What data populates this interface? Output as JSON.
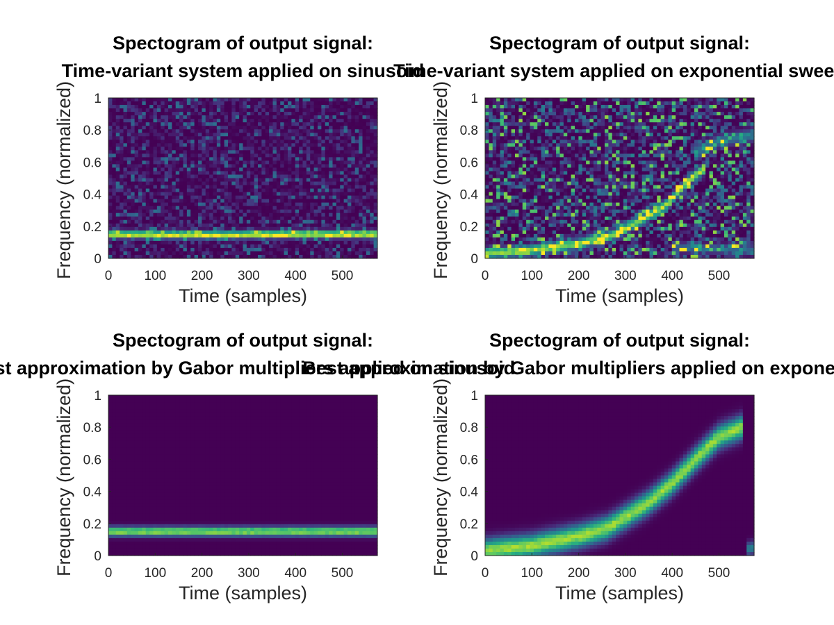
{
  "chart_data": [
    {
      "type": "heatmap",
      "title": "Spectogram of output signal:",
      "subtitle": "Time-variant system applied on sinusoid",
      "xlabel": "Time (samples)",
      "ylabel": "Frequency (normalized)",
      "xlim": [
        0,
        575
      ],
      "ylim": [
        0,
        1
      ],
      "xticks": [
        "0",
        "100",
        "200",
        "300",
        "400",
        "500"
      ],
      "yticks": [
        "0",
        "0.2",
        "0.4",
        "0.6",
        "0.8",
        "1"
      ],
      "colormap": "viridis",
      "ridges": [
        {
          "points": [
            [
              0,
              0.15
            ],
            [
              200,
              0.145
            ],
            [
              400,
              0.15
            ],
            [
              575,
              0.15
            ]
          ],
          "peak": 0.98,
          "width": 0.022
        }
      ],
      "background": "noisy",
      "noise_level": 0.17
    },
    {
      "type": "heatmap",
      "title": "Spectogram of output signal:",
      "subtitle": "Time-variant system applied on exponential sweep",
      "xlabel": "Time (samples)",
      "ylabel": "Frequency (normalized)",
      "xlim": [
        0,
        575
      ],
      "ylim": [
        0,
        1
      ],
      "xticks": [
        "0",
        "100",
        "200",
        "300",
        "400",
        "500"
      ],
      "yticks": [
        "0",
        "0.2",
        "0.4",
        "0.6",
        "0.8",
        "1"
      ],
      "colormap": "viridis",
      "ridges": [
        {
          "points": [
            [
              0,
              0.03
            ],
            [
              100,
              0.05
            ],
            [
              200,
              0.09
            ],
            [
              270,
              0.14
            ],
            [
              330,
              0.23
            ],
            [
              390,
              0.34
            ],
            [
              440,
              0.5
            ],
            [
              470,
              0.56
            ]
          ],
          "peak": 0.85,
          "width": 0.03
        },
        {
          "points": [
            [
              450,
              0.66
            ],
            [
              500,
              0.73
            ],
            [
              575,
              0.77
            ]
          ],
          "peak": 0.4,
          "width": 0.04
        },
        {
          "points": [
            [
              400,
              0.07
            ],
            [
              575,
              0.05
            ]
          ],
          "peak": 0.35,
          "width": 0.03
        }
      ],
      "background": "noisy",
      "noise_level": 0.38
    },
    {
      "type": "heatmap",
      "title": "Spectogram of output signal:",
      "subtitle": "Best approximation by Gabor multipliers applied on sinusoid",
      "xlabel": "Time (samples)",
      "ylabel": "Frequency (normalized)",
      "xlim": [
        0,
        575
      ],
      "ylim": [
        0,
        1
      ],
      "xticks": [
        "0",
        "100",
        "200",
        "300",
        "400",
        "500"
      ],
      "yticks": [
        "0",
        "0.2",
        "0.4",
        "0.6",
        "0.8",
        "1"
      ],
      "colormap": "viridis",
      "ridges": [
        {
          "points": [
            [
              0,
              0.15
            ],
            [
              575,
              0.15
            ]
          ],
          "peak": 0.9,
          "width": 0.028
        }
      ],
      "background": "clean",
      "noise_level": 0.0
    },
    {
      "type": "heatmap",
      "title": "Spectogram of output signal:",
      "subtitle": "Best approximation by Gabor multipliers applied on exponential sweep",
      "xlabel": "Time (samples)",
      "ylabel": "Frequency (normalized)",
      "xlim": [
        0,
        575
      ],
      "ylim": [
        0,
        1
      ],
      "xticks": [
        "0",
        "100",
        "200",
        "300",
        "400",
        "500"
      ],
      "yticks": [
        "0",
        "0.2",
        "0.4",
        "0.6",
        "0.8",
        "1"
      ],
      "colormap": "viridis",
      "ridges": [
        {
          "points": [
            [
              0,
              0.03
            ],
            [
              100,
              0.06
            ],
            [
              200,
              0.12
            ],
            [
              260,
              0.17
            ],
            [
              300,
              0.24
            ],
            [
              350,
              0.33
            ],
            [
              400,
              0.45
            ],
            [
              450,
              0.6
            ],
            [
              500,
              0.74
            ],
            [
              550,
              0.8
            ]
          ],
          "peak": 0.9,
          "width": 0.07
        },
        {
          "points": [
            [
              560,
              0.04
            ],
            [
              575,
              0.05
            ]
          ],
          "peak": 0.45,
          "width": 0.04
        }
      ],
      "background": "clean",
      "noise_level": 0.0
    }
  ]
}
